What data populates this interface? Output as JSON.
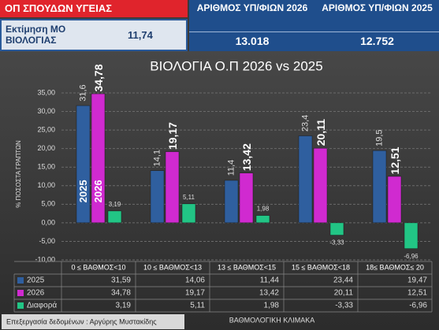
{
  "header": {
    "badge": "ΟΠ ΣΠΟΥΔΩΝ ΥΓΕΙΑΣ",
    "estimate_label": "Εκτίμηση ΜΟ ΒΙΟΛΟΓΙΑΣ",
    "estimate_value": "11,74",
    "columns": [
      {
        "label": "ΑΡΙΘΜΟΣ ΥΠ/ΦΙΩΝ 2026",
        "value": "13.018"
      },
      {
        "label": "ΑΡΙΘΜΟΣ ΥΠ/ΦΙΩΝ 2025",
        "value": "12.752"
      }
    ]
  },
  "chart_data": {
    "type": "bar",
    "title": "ΒΙΟΛΟΓΙΑ Ο.Π 2026 vs 2025",
    "x_label": "ΒΑΘΜΟΛΟΓΙΚΗ ΚΛΙΜΑΚΑ",
    "y_label": "% ΠΟΣΟΣΤΑ ΓΡΑΠΤΩΝ",
    "categories": [
      "0 ≤ ΒΑΘΜΟΣ<10",
      "10 ≤ ΒΑΘΜΟΣ<13",
      "13 ≤ ΒΑΘΜΟΣ<15",
      "15 ≤ ΒΑΘΜΟΣ<18",
      "18≤ ΒΑΘΜΟΣ≤ 20"
    ],
    "series": [
      {
        "name": "2025",
        "color": "#2f5f9f",
        "values": [
          31.59,
          14.06,
          11.44,
          23.44,
          19.47
        ],
        "value_labels": [
          "31,6",
          "14,1",
          "11,4",
          "23,4",
          "19,5"
        ],
        "table_labels": [
          "31,59",
          "14,06",
          "11,44",
          "23,44",
          "19,47"
        ]
      },
      {
        "name": "2026",
        "color": "#d02ad0",
        "values": [
          34.78,
          19.17,
          13.42,
          20.11,
          12.51
        ],
        "value_labels": [
          "34,78",
          "19,17",
          "13,42",
          "20,11",
          "12,51"
        ],
        "table_labels": [
          "34,78",
          "19,17",
          "13,42",
          "20,11",
          "12,51"
        ]
      },
      {
        "name": "Διαφορά",
        "color": "#22c585",
        "values": [
          3.19,
          5.11,
          1.98,
          -3.33,
          -6.96
        ],
        "value_labels": [
          "3,19",
          "5,11",
          "1,98",
          "-3,33",
          "-6,96"
        ],
        "table_labels": [
          "3,19",
          "5,11",
          "1,98",
          "-3,33",
          "-6,96"
        ]
      }
    ],
    "ylim": [
      -10,
      35
    ],
    "yticks": [
      {
        "value": -10,
        "label": "-10,00"
      },
      {
        "value": -5,
        "label": "-5,00"
      },
      {
        "value": 0,
        "label": "0,00"
      },
      {
        "value": 5,
        "label": "5,00"
      },
      {
        "value": 10,
        "label": "10,00"
      },
      {
        "value": 15,
        "label": "15,00"
      },
      {
        "value": 20,
        "label": "20,00"
      },
      {
        "value": 25,
        "label": "25,00"
      },
      {
        "value": 30,
        "label": "30,00"
      },
      {
        "value": 35,
        "label": "35,00"
      }
    ],
    "grid": true
  },
  "footer": "Επεξεργασία δεδομένων : Αργύρης Μυστακίδης"
}
